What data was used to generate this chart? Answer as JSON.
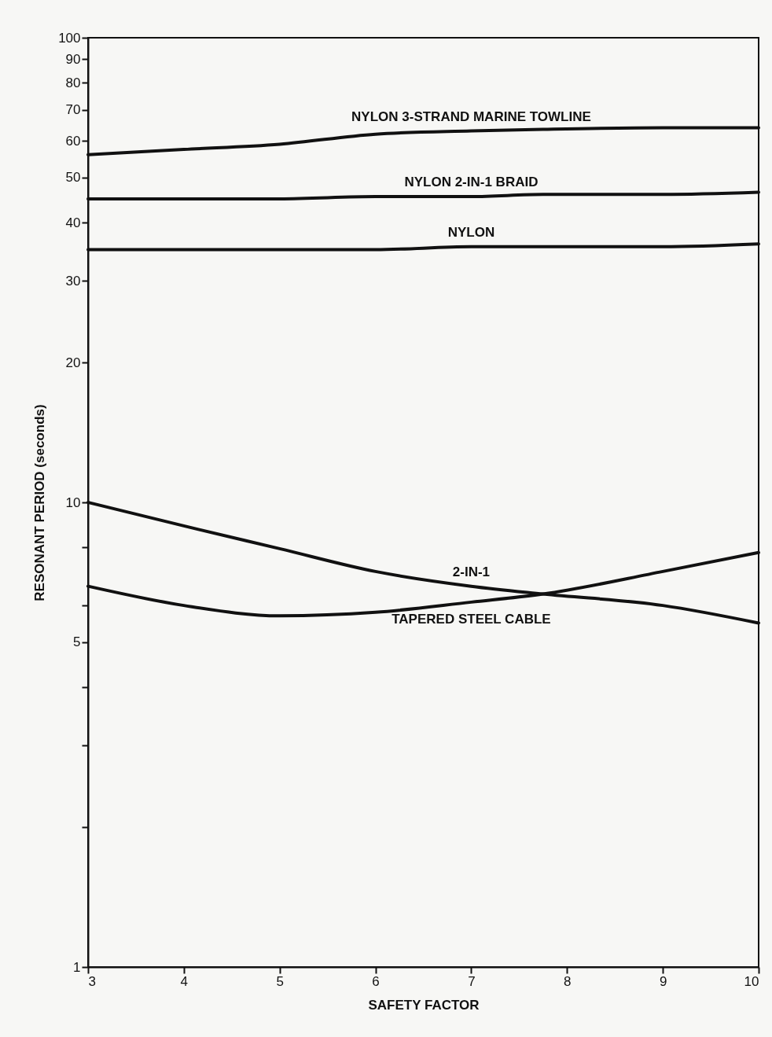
{
  "chart_data": {
    "type": "line",
    "xlabel": "SAFETY FACTOR",
    "ylabel": "RESONANT PERIOD (seconds)",
    "x": [
      3,
      4,
      5,
      6,
      7,
      7.75,
      9,
      10
    ],
    "series": [
      {
        "name": "NYLON 3-STRAND MARINE TOWLINE",
        "color": "#111111",
        "values": [
          56,
          57.5,
          59,
          62,
          63,
          63.5,
          64,
          64
        ]
      },
      {
        "name": "NYLON 2-IN-1 BRAID",
        "color": "#111111",
        "values": [
          45,
          45,
          45,
          45.5,
          45.5,
          46,
          46,
          46.5
        ]
      },
      {
        "name": "NYLON",
        "color": "#111111",
        "values": [
          35,
          35,
          35,
          35,
          35.5,
          35.5,
          35.5,
          36
        ]
      },
      {
        "name": "2-IN-1",
        "color": "#111111",
        "values": [
          10,
          8.9,
          7.95,
          7.1,
          6.6,
          6.35,
          6,
          5.5
        ]
      },
      {
        "name": "TAPERED STEEL CABLE",
        "color": "#111111",
        "values": [
          6.6,
          6,
          5.7,
          5.8,
          6.1,
          6.35,
          7.1,
          7.8
        ]
      }
    ],
    "xlim": [
      3,
      10
    ],
    "xticks": [
      3,
      4,
      5,
      6,
      7,
      8,
      9,
      10
    ],
    "ylim": [
      1,
      100
    ],
    "yticks": [
      1,
      {
        "value": 2,
        "label": null
      },
      {
        "value": 3,
        "label": null
      },
      {
        "value": 4,
        "label": null
      },
      5,
      {
        "value": 6,
        "label": null
      },
      {
        "value": 8,
        "label": null
      },
      10,
      20,
      30,
      40,
      50,
      60,
      70,
      80,
      90,
      100
    ],
    "log": true,
    "grid": false,
    "legend": false,
    "line_style": "solid",
    "marker": "none"
  }
}
